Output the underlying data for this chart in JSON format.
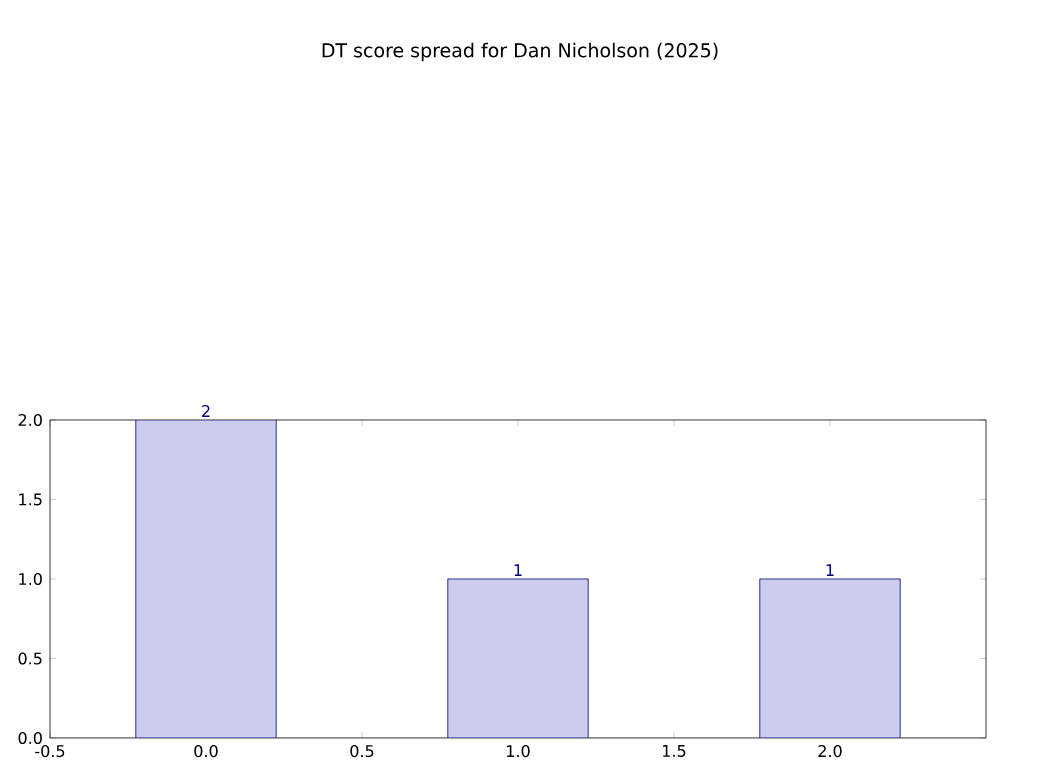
{
  "chart_data": {
    "type": "bar",
    "title": "DT score spread for Dan Nicholson (2025)",
    "x": [
      0,
      1,
      2
    ],
    "values": [
      2,
      1,
      1
    ],
    "color": "#ccccee",
    "xlim": [
      -0.5,
      2.5
    ],
    "xticks": [
      -0.5,
      {
        "value": 0,
        "label": "0.0"
      },
      0.5,
      {
        "value": 1,
        "label": "1.0"
      },
      1.5,
      {
        "value": 2,
        "label": "2.0"
      }
    ],
    "ylim": [
      0,
      2
    ],
    "yticks": [
      {
        "value": 0,
        "label": "0.0"
      },
      0.5,
      {
        "value": 1,
        "label": "1.0"
      },
      1.5,
      {
        "value": 2,
        "label": "2.0"
      }
    ],
    "data_labels": true,
    "grid": false
  }
}
